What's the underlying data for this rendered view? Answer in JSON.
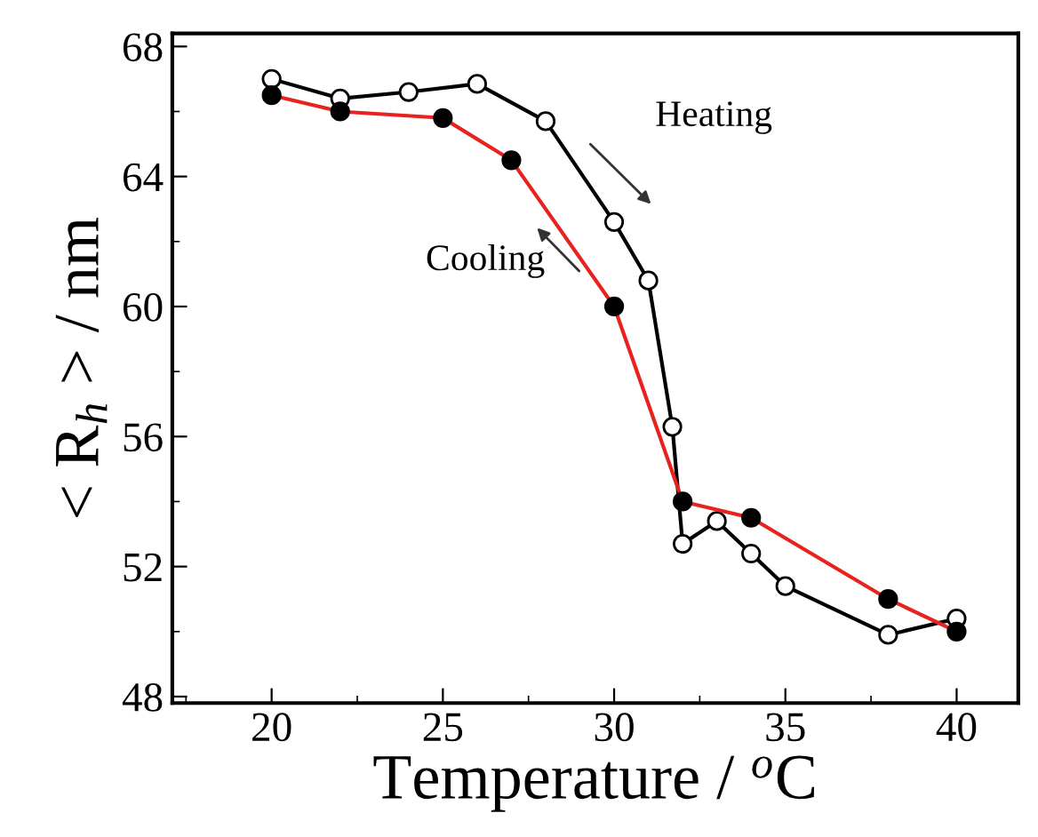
{
  "chart_data": {
    "type": "line",
    "xlabel": "Temperature / $^{o}$C",
    "ylabel": "< R$_{h}$ > / nm",
    "xlim": [
      17.1,
      41.8
    ],
    "ylim": [
      47.8,
      68.4
    ],
    "xticks": [
      20,
      25,
      30,
      35,
      40
    ],
    "yticks": [
      48,
      52,
      56,
      60,
      64,
      68
    ],
    "grid": false,
    "legend": false,
    "line_style": "solid",
    "marker": "circle",
    "annotations": [
      "Heating",
      "Cooling"
    ],
    "series": [
      {
        "color": "#000000",
        "x": [
          20,
          22,
          24,
          26,
          28,
          30,
          31,
          31.7,
          32,
          33,
          34,
          35,
          38,
          40
        ],
        "values": [
          67.0,
          66.4,
          66.6,
          66.85,
          65.7,
          62.6,
          60.8,
          56.3,
          52.7,
          53.4,
          52.4,
          51.4,
          49.9,
          50.4
        ]
      },
      {
        "color": "#e8221e",
        "x": [
          20,
          22,
          25,
          27,
          30,
          32,
          34,
          38,
          40
        ],
        "values": [
          66.5,
          66.0,
          65.8,
          64.5,
          60.0,
          54.0,
          53.5,
          51.0,
          50.0
        ]
      }
    ]
  }
}
